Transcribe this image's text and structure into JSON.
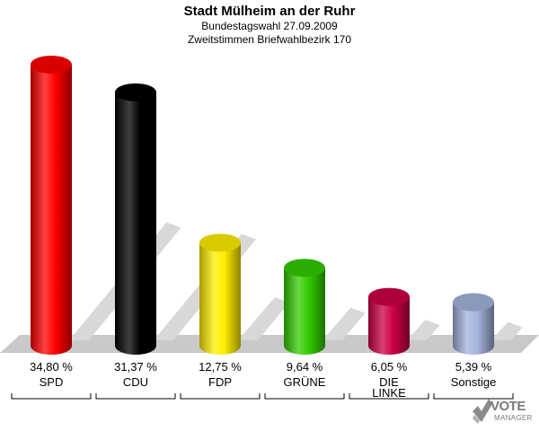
{
  "chart_data": {
    "type": "bar",
    "title": "Stadt Mülheim an der Ruhr",
    "subtitle": [
      "Bundestagswahl 27.09.2009",
      "Zweitstimmen Briefwahlbezirk 170"
    ],
    "categories": [
      [
        "SPD"
      ],
      [
        "CDU"
      ],
      [
        "FDP"
      ],
      [
        "GRÜNE"
      ],
      [
        "DIE",
        "LINKE"
      ],
      [
        "Sonstige"
      ]
    ],
    "values": [
      34.8,
      31.37,
      12.75,
      9.64,
      6.05,
      5.39
    ],
    "value_labels": [
      "34,80 %",
      "31,37 %",
      "12,75 %",
      "9,64 %",
      "6,05 %",
      "5,39 %"
    ],
    "colors": [
      "#ff0000",
      "#000000",
      "#ffee00",
      "#33cc00",
      "#cc0044",
      "#a4b4dd"
    ],
    "ylim": [
      0,
      36
    ],
    "legend": "none",
    "grid": false
  },
  "logo": {
    "main": "VOTE",
    "sub": "MANAGER"
  }
}
